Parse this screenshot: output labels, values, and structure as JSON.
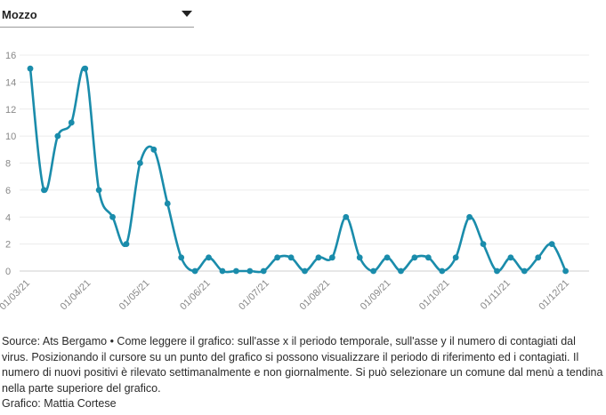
{
  "selector": {
    "selected": "Mozzo",
    "arrow_icon": "caret-down-icon"
  },
  "chart_data": {
    "type": "line",
    "title": "",
    "xlabel": "",
    "ylabel": "",
    "ylim": [
      0,
      16
    ],
    "y_ticks": [
      0,
      2,
      4,
      6,
      8,
      10,
      12,
      14,
      16
    ],
    "grid": true,
    "color": "#1a8cab",
    "x_ticks": [
      {
        "label": "01/03/21",
        "date": "2021-03-01"
      },
      {
        "label": "01/04/21",
        "date": "2021-04-01"
      },
      {
        "label": "01/05/21",
        "date": "2021-05-01"
      },
      {
        "label": "01/06/21",
        "date": "2021-06-01"
      },
      {
        "label": "01/07/21",
        "date": "2021-07-01"
      },
      {
        "label": "01/08/21",
        "date": "2021-08-01"
      },
      {
        "label": "01/09/21",
        "date": "2021-09-01"
      },
      {
        "label": "01/10/21",
        "date": "2021-10-01"
      },
      {
        "label": "01/11/21",
        "date": "2021-11-01"
      },
      {
        "label": "01/12/21",
        "date": "2021-12-01"
      }
    ],
    "series": [
      {
        "x": [
          "2021-03-01",
          "2021-03-08",
          "2021-03-15",
          "2021-03-22",
          "2021-03-29",
          "2021-04-05",
          "2021-04-12",
          "2021-04-19",
          "2021-04-26",
          "2021-05-03",
          "2021-05-10",
          "2021-05-17",
          "2021-05-24",
          "2021-05-31",
          "2021-06-07",
          "2021-06-14",
          "2021-06-21",
          "2021-06-28",
          "2021-07-05",
          "2021-07-12",
          "2021-07-19",
          "2021-07-26",
          "2021-08-02",
          "2021-08-09",
          "2021-08-16",
          "2021-08-23",
          "2021-08-30",
          "2021-09-06",
          "2021-09-13",
          "2021-09-20",
          "2021-09-27",
          "2021-10-04",
          "2021-10-11",
          "2021-10-18",
          "2021-10-25",
          "2021-11-01",
          "2021-11-08",
          "2021-11-15",
          "2021-11-22",
          "2021-11-29"
        ],
        "y": [
          15,
          6,
          10,
          11,
          15,
          6,
          4,
          2,
          8,
          9,
          5,
          1,
          0,
          1,
          0,
          0,
          0,
          0,
          1,
          1,
          0,
          1,
          1,
          4,
          1,
          0,
          1,
          0,
          1,
          1,
          0,
          1,
          4,
          2,
          0,
          1,
          0,
          1,
          2,
          0
        ]
      }
    ]
  },
  "footer": {
    "source": "Source: Ats Bergamo • Come leggere il grafico: sull'asse x il periodo temporale, sull'asse y il numero di contagiati dal virus. Posizionando il cursore su un punto del grafico si possono visualizzare il periodo di riferimento ed i contagiati. Il numero di nuovi positivi è rilevato settimanalmente e non giornalmente. Si può selezionare un comune dal menù a tendina nella parte superiore del grafico.",
    "credit": "Grafico: Mattia Cortese"
  }
}
